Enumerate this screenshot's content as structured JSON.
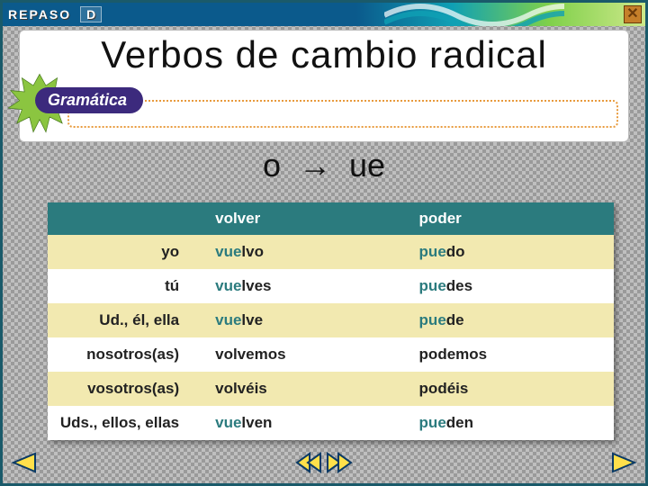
{
  "header": {
    "label": "REPASO",
    "chapter": "D"
  },
  "title": "Verbos de cambio radical",
  "pill": "Gramática",
  "subtitle_parts": {
    "a": "o",
    "arrow": "→",
    "b": "ue"
  },
  "table": {
    "header_color": "#2b7b7e",
    "stripe_color": "#f2e9b0",
    "stem_color": "#2b7b7e",
    "columns": [
      "",
      "volver",
      "poder"
    ],
    "rows": [
      {
        "pronoun": "yo",
        "c1_stem": "vue",
        "c1_end": "lvo",
        "c2_stem": "pue",
        "c2_end": "do"
      },
      {
        "pronoun": "tú",
        "c1_stem": "vue",
        "c1_end": "lves",
        "c2_stem": "pue",
        "c2_end": "des"
      },
      {
        "pronoun": "Ud., él, ella",
        "c1_stem": "vue",
        "c1_end": "lve",
        "c2_stem": "pue",
        "c2_end": "de"
      },
      {
        "pronoun": "nosotros(as)",
        "c1_stem": "",
        "c1_end": "volvemos",
        "c2_stem": "",
        "c2_end": "podemos"
      },
      {
        "pronoun": "vosotros(as)",
        "c1_stem": "",
        "c1_end": "volvéis",
        "c2_stem": "",
        "c2_end": "podéis"
      },
      {
        "pronoun": "Uds., ellos, ellas",
        "c1_stem": "vue",
        "c1_end": "lven",
        "c2_stem": "pue",
        "c2_end": "den"
      }
    ]
  },
  "colors": {
    "header_grad_start": "#0b5a8c",
    "header_grad_end": "#cde88a",
    "starburst": "#8bc540",
    "pill_bg": "#3c2a7d",
    "arrow_fill": "#ffe04a"
  }
}
